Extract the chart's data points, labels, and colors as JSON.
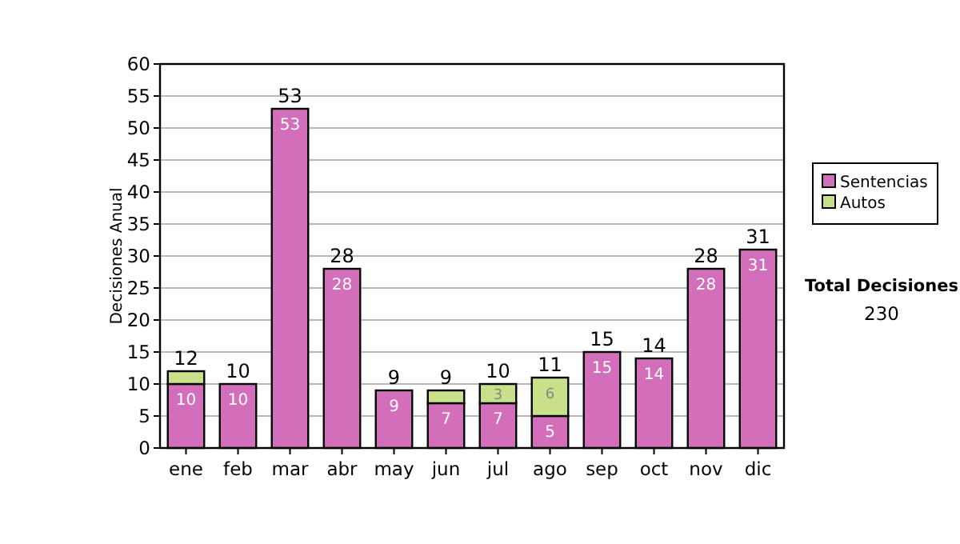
{
  "chart_data": {
    "type": "bar",
    "stacked": true,
    "ylabel": "Decisiones Anual",
    "categories": [
      "ene",
      "feb",
      "mar",
      "abr",
      "may",
      "jun",
      "jul",
      "ago",
      "sep",
      "oct",
      "nov",
      "dic"
    ],
    "series": [
      {
        "name": "Sentencias",
        "color": "#d36fba",
        "values": [
          10,
          10,
          53,
          28,
          9,
          7,
          7,
          5,
          15,
          14,
          28,
          31
        ],
        "value_labels": [
          "10",
          "10",
          "53",
          "28",
          "9",
          "7",
          "7",
          "5",
          "15",
          "14",
          "28",
          "31"
        ]
      },
      {
        "name": "Autos",
        "color": "#c8e08a",
        "values": [
          2,
          0,
          0,
          0,
          0,
          2,
          3,
          6,
          0,
          0,
          0,
          0
        ],
        "value_labels": [
          null,
          null,
          null,
          null,
          null,
          null,
          "3",
          "6",
          null,
          null,
          null,
          null
        ]
      }
    ],
    "totals": [
      "12",
      "10",
      "53",
      "28",
      "9",
      "9",
      "10",
      "11",
      "15",
      "14",
      "28",
      "31"
    ],
    "ylim": [
      0,
      60
    ],
    "yticks": [
      0,
      5,
      10,
      15,
      20,
      25,
      30,
      35,
      40,
      45,
      50,
      55,
      60
    ],
    "grid": "y",
    "legend": "right",
    "annotations": [
      "Total Decisiones",
      "230"
    ]
  }
}
